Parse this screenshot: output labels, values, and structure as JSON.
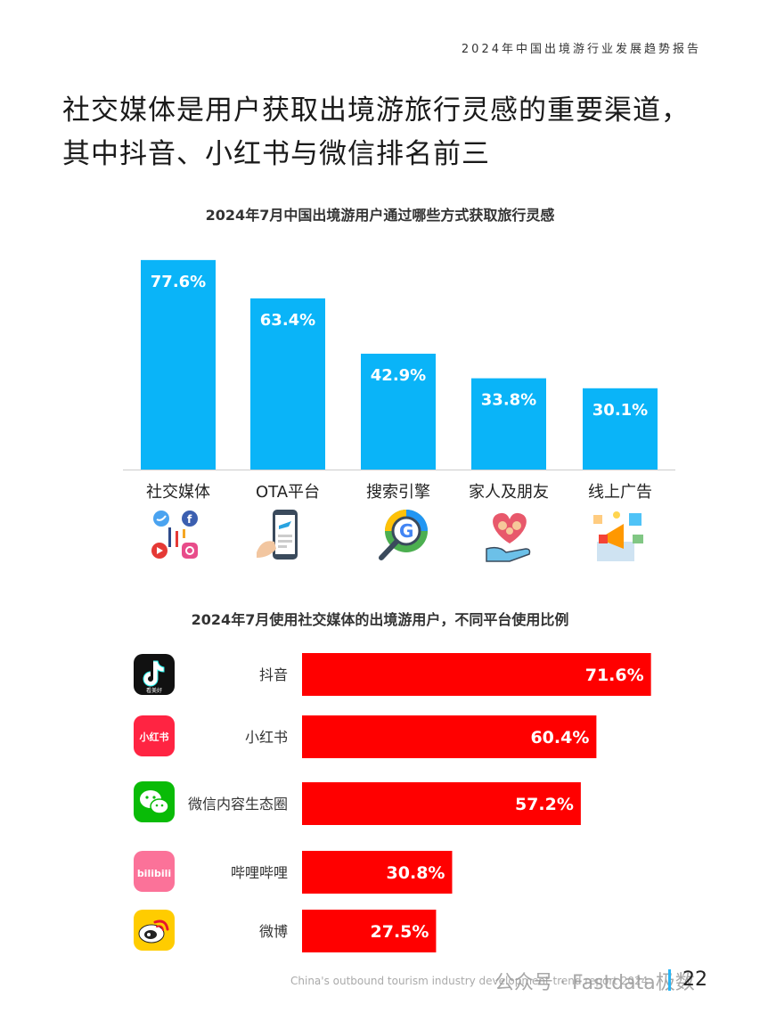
{
  "header": {
    "report_title": "2024年中国出境游行业发展趋势报告"
  },
  "headline": {
    "line1": "社交媒体是用户获取出境游旅行灵感的重要渠道，",
    "line2": "其中抖音、小红书与微信排名前三"
  },
  "chart_data": [
    {
      "type": "bar",
      "title": "2024年7月中国出境游用户通过哪些方式获取旅行灵感",
      "categories": [
        "社交媒体",
        "OTA平台",
        "搜索引擎",
        "家人及朋友",
        "线上广告"
      ],
      "values": [
        77.6,
        63.4,
        42.9,
        33.8,
        30.1
      ],
      "value_labels": [
        "77.6%",
        "63.4%",
        "42.9%",
        "33.8%",
        "30.1%"
      ],
      "color": "#0ab4f8",
      "icons": [
        "social-media-icon",
        "mobile-boarding-pass-icon",
        "google-search-icon",
        "family-friends-icon",
        "online-ads-icon"
      ],
      "ylim": [
        0,
        100
      ],
      "grid": false
    },
    {
      "type": "bar",
      "orientation": "horizontal",
      "title": "2024年7月使用社交媒体的出境游用户，不同平台使用比例",
      "categories": [
        "抖音",
        "小红书",
        "微信内容生态圈",
        "哔哩哔哩",
        "微博"
      ],
      "values": [
        71.6,
        60.4,
        57.2,
        30.8,
        27.5
      ],
      "value_labels": [
        "71.6%",
        "60.4%",
        "57.2%",
        "30.8%",
        "27.5%"
      ],
      "color": "#ff0000",
      "icons": [
        "douyin-icon",
        "xiaohongshu-icon",
        "wechat-icon",
        "bilibili-icon",
        "weibo-icon"
      ],
      "xlim": [
        0,
        100
      ],
      "grid": false
    }
  ],
  "app_icon_text": {
    "douyin_sub": "看美好",
    "xiaohongshu": "小红书",
    "bilibili": "bilibili"
  },
  "footer": {
    "text": "China's outbound tourism industry development trend report 2024",
    "watermark": "公众号 · Fastdata极数",
    "page_number": "22"
  },
  "colors": {
    "accent_blue": "#0ab4f8",
    "accent_red": "#ff0000",
    "page_bar": "#29b6f6"
  }
}
